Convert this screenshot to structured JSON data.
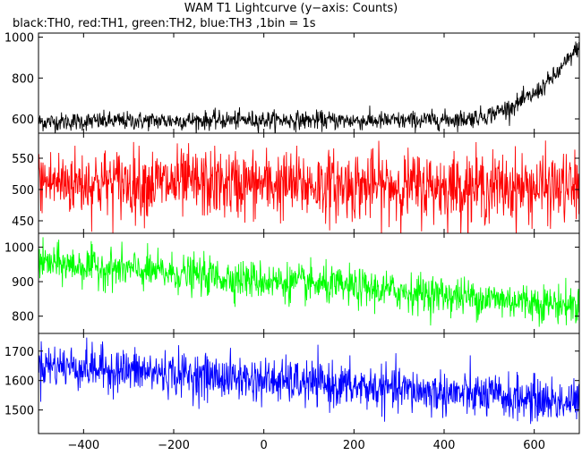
{
  "chart_data": {
    "type": "line",
    "title": "WAM T1 Lightcurve (y−axis: Counts)",
    "subtitle": "black:TH0, red:TH1, green:TH2, blue:TH3 ,1bin = 1s",
    "xlim": [
      -500,
      700
    ],
    "x_ticks": [
      -400,
      -200,
      0,
      200,
      400,
      600
    ],
    "x_sampling": {
      "start": -500,
      "end": 700,
      "step": 1
    },
    "grid": false,
    "legend": "none",
    "panels": [
      {
        "color": "#000000",
        "ylim": [
          530,
          1020
        ],
        "y_ticks": [
          600,
          800,
          1000
        ],
        "trend": {
          "x": [
            -500,
            -300,
            0,
            300,
            450,
            500,
            550,
            600,
            650,
            680,
            700
          ],
          "y": [
            585,
            590,
            595,
            590,
            600,
            620,
            660,
            720,
            820,
            900,
            960
          ]
        },
        "noise_amplitude": 45
      },
      {
        "color": "#ff0000",
        "ylim": [
          430,
          590
        ],
        "y_ticks": [
          450,
          500,
          550
        ],
        "trend": {
          "x": [
            -500,
            700
          ],
          "y": [
            512,
            502
          ]
        },
        "noise_amplitude": 55
      },
      {
        "color": "#00ff00",
        "ylim": [
          750,
          1040
        ],
        "y_ticks": [
          800,
          900,
          1000
        ],
        "trend": {
          "x": [
            -500,
            700
          ],
          "y": [
            955,
            830
          ]
        },
        "noise_amplitude": 55
      },
      {
        "color": "#0000ff",
        "ylim": [
          1420,
          1760
        ],
        "y_ticks": [
          1500,
          1600,
          1700
        ],
        "trend": {
          "x": [
            -500,
            700
          ],
          "y": [
            1655,
            1525
          ]
        },
        "noise_amplitude": 75
      }
    ]
  }
}
